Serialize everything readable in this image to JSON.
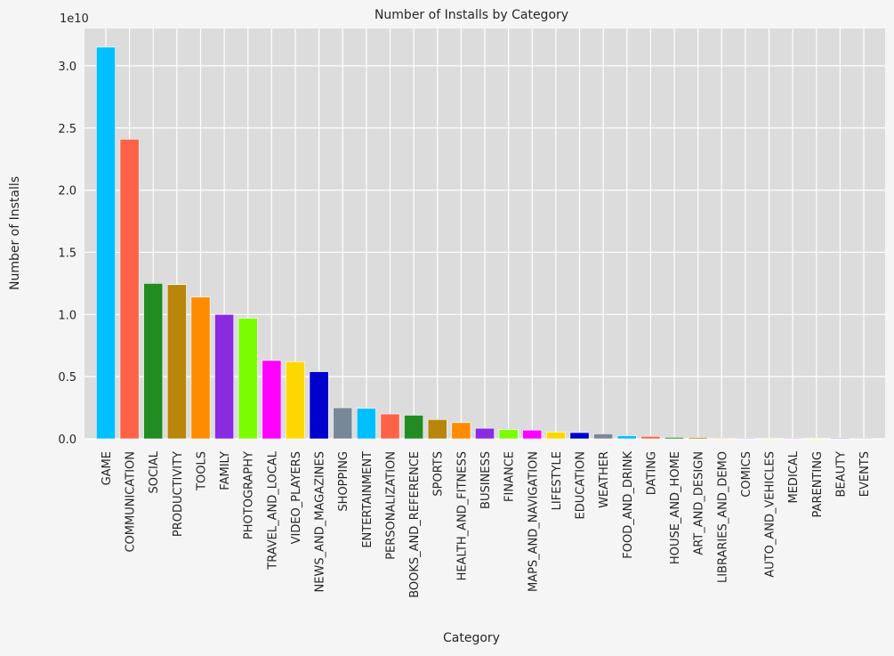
{
  "chart_data": {
    "type": "bar",
    "title": "Number of Installs by Category",
    "xlabel": "Category",
    "ylabel": "Number of Installs",
    "offset_label": "1e10",
    "ylim": [
      0,
      3.3
    ],
    "yticks": [
      0.0,
      0.5,
      1.0,
      1.5,
      2.0,
      2.5,
      3.0
    ],
    "ytick_labels": [
      "0.0",
      "0.5",
      "1.0",
      "1.5",
      "2.0",
      "2.5",
      "3.0"
    ],
    "grid": true,
    "categories": [
      "GAME",
      "COMMUNICATION",
      "SOCIAL",
      "PRODUCTIVITY",
      "TOOLS",
      "FAMILY",
      "PHOTOGRAPHY",
      "TRAVEL_AND_LOCAL",
      "VIDEO_PLAYERS",
      "NEWS_AND_MAGAZINES",
      "SHOPPING",
      "ENTERTAINMENT",
      "PERSONALIZATION",
      "BOOKS_AND_REFERENCE",
      "SPORTS",
      "HEALTH_AND_FITNESS",
      "BUSINESS",
      "FINANCE",
      "MAPS_AND_NAVIGATION",
      "LIFESTYLE",
      "EDUCATION",
      "WEATHER",
      "FOOD_AND_DRINK",
      "DATING",
      "HOUSE_AND_HOME",
      "ART_AND_DESIGN",
      "LIBRARIES_AND_DEMO",
      "COMICS",
      "AUTO_AND_VEHICLES",
      "MEDICAL",
      "PARENTING",
      "BEAUTY",
      "EVENTS"
    ],
    "values": [
      3.15,
      2.41,
      1.25,
      1.24,
      1.14,
      1.0,
      0.97,
      0.63,
      0.62,
      0.54,
      0.25,
      0.245,
      0.2,
      0.19,
      0.155,
      0.13,
      0.085,
      0.075,
      0.07,
      0.055,
      0.05,
      0.04,
      0.025,
      0.02,
      0.012,
      0.011,
      0.006,
      0.005,
      0.005,
      0.004,
      0.003,
      0.003,
      0.002
    ],
    "colors": [
      "#00bfff",
      "#ff6347",
      "#228b22",
      "#b8860b",
      "#ff8c00",
      "#8a2be2",
      "#7cfc00",
      "#ff00ff",
      "#ffd700",
      "#0000cd",
      "#778899",
      "#00bfff",
      "#ff6347",
      "#228b22",
      "#b8860b",
      "#ff8c00",
      "#8a2be2",
      "#7cfc00",
      "#ff00ff",
      "#ffd700",
      "#0000cd",
      "#778899",
      "#00bfff",
      "#ff6347",
      "#228b22",
      "#b8860b",
      "#ff8c00",
      "#8a2be2",
      "#7cfc00",
      "#ff00ff",
      "#ffd700",
      "#0000cd",
      "#778899"
    ]
  }
}
